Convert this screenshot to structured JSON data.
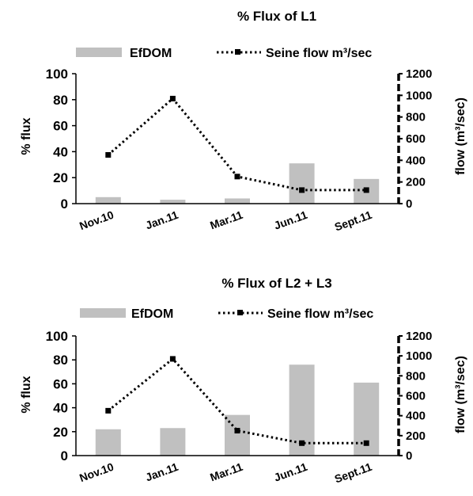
{
  "chart_data": [
    {
      "type": "bar+line",
      "title": "% Flux of L1",
      "categories": [
        "Nov.10",
        "Jan.11",
        "Mar.11",
        "Jun.11",
        "Sept.11"
      ],
      "series": [
        {
          "name": "EfDOM",
          "type": "bar",
          "axis": "left",
          "values": [
            5,
            3,
            4,
            31,
            19
          ]
        },
        {
          "name": "Seine flow m³/sec",
          "type": "line",
          "axis": "right",
          "values": [
            450,
            970,
            250,
            125,
            125
          ]
        }
      ],
      "ylabel": "% flux",
      "ylim": [
        0,
        100
      ],
      "yticks": [
        0,
        20,
        40,
        60,
        80,
        100
      ],
      "y2label": "flow (m³/sec)",
      "y2lim": [
        0,
        1200
      ],
      "y2ticks": [
        0,
        200,
        400,
        600,
        800,
        1000,
        1200
      ],
      "legend": "top",
      "grid": false,
      "colors": {
        "bar": "#c0c0c0",
        "line": "#000000"
      }
    },
    {
      "type": "bar+line",
      "title": "% Flux of L2 + L3",
      "categories": [
        "Nov.10",
        "Jan.11",
        "Mar.11",
        "Jun.11",
        "Sept.11"
      ],
      "series": [
        {
          "name": "EfDOM",
          "type": "bar",
          "axis": "left",
          "values": [
            22,
            23,
            34,
            76,
            61
          ]
        },
        {
          "name": "Seine flow m³/sec",
          "type": "line",
          "axis": "right",
          "values": [
            450,
            970,
            250,
            125,
            125
          ]
        }
      ],
      "ylabel": "% flux",
      "ylim": [
        0,
        100
      ],
      "yticks": [
        0,
        20,
        40,
        60,
        80,
        100
      ],
      "y2label": "flow (m³/sec)",
      "y2lim": [
        0,
        1200
      ],
      "y2ticks": [
        0,
        200,
        400,
        600,
        800,
        1000,
        1200
      ],
      "legend": "top",
      "grid": false,
      "colors": {
        "bar": "#c0c0c0",
        "line": "#000000"
      }
    }
  ]
}
